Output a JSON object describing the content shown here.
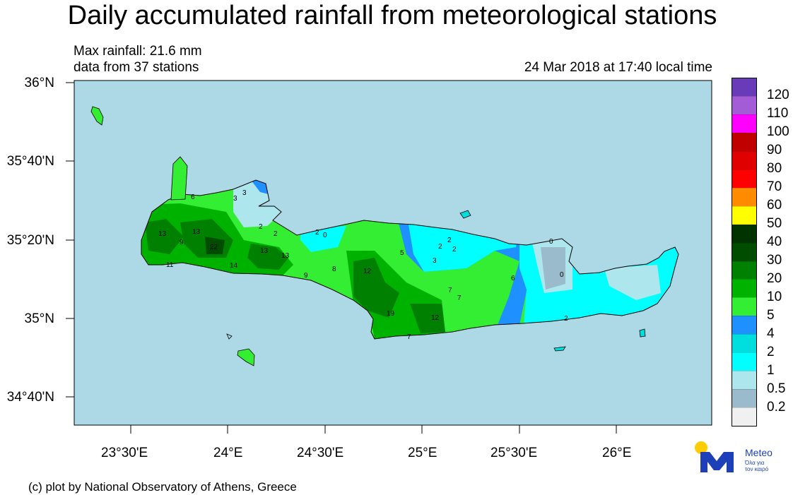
{
  "title": "Daily accumulated rainfall from meteorological stations",
  "info": {
    "max_rainfall": "Max rainfall: 21.6 mm",
    "stations": "data from 37 stations",
    "timestamp": "24 Mar 2018 at 17:40 local time"
  },
  "axes": {
    "lat_labels": [
      "36°N",
      "35°40'N",
      "35°20'N",
      "35°N",
      "34°40'N"
    ],
    "lon_labels": [
      "23°30'E",
      "24°E",
      "24°30'E",
      "25°E",
      "25°30'E",
      "26°E"
    ]
  },
  "colors": {
    "sea": "#add8e6",
    "coast": "#000000"
  },
  "legend": {
    "labels": [
      "120",
      "110",
      "100",
      "90",
      "80",
      "70",
      "60",
      "50",
      "40",
      "30",
      "20",
      "10",
      "5",
      "4",
      "2",
      "1",
      "0.5",
      "0.2"
    ],
    "colors": [
      "#6a3bb8",
      "#a35cd6",
      "#ff00ff",
      "#c00000",
      "#e00000",
      "#ff0000",
      "#ff8c00",
      "#ffff00",
      "#003300",
      "#004d00",
      "#008000",
      "#00b200",
      "#33ee33",
      "#1e90ff",
      "#00dddd",
      "#00ffff",
      "#aee6ee",
      "#99bbcc",
      "#f0f0f0"
    ]
  },
  "station_values": [
    {
      "label": "6"
    },
    {
      "label": "3"
    },
    {
      "label": "3"
    },
    {
      "label": "13"
    },
    {
      "label": "13"
    },
    {
      "label": "9"
    },
    {
      "label": "22"
    },
    {
      "label": "2"
    },
    {
      "label": "2"
    },
    {
      "label": "2"
    },
    {
      "label": "0"
    },
    {
      "label": "13"
    },
    {
      "label": "13"
    },
    {
      "label": "11"
    },
    {
      "label": "14"
    },
    {
      "label": "9"
    },
    {
      "label": "8"
    },
    {
      "label": "12"
    },
    {
      "label": "5"
    },
    {
      "label": "2"
    },
    {
      "label": "2"
    },
    {
      "label": "2"
    },
    {
      "label": "3"
    },
    {
      "label": "0"
    },
    {
      "label": "6"
    },
    {
      "label": "7"
    },
    {
      "label": "7"
    },
    {
      "label": "19"
    },
    {
      "label": "12"
    },
    {
      "label": "7"
    },
    {
      "label": "2"
    },
    {
      "label": "0"
    }
  ],
  "logo": {
    "name": "Meteo",
    "tagline_1": "Όλα για",
    "tagline_2": "τον καιρό"
  },
  "footer": "(c) plot by National Observatory of Athens, Greece"
}
